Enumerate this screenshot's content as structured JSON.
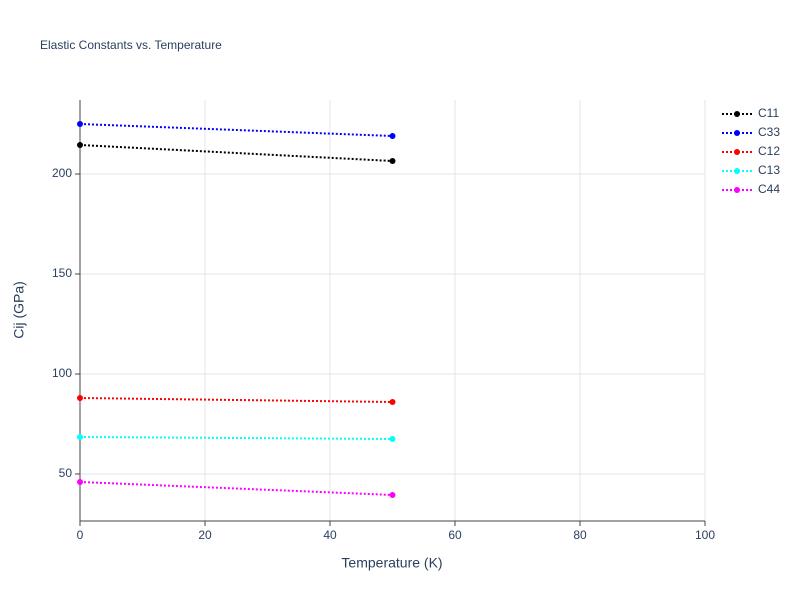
{
  "chart_data": {
    "type": "line",
    "title": "Elastic Constants vs. Temperature",
    "x_label": "Temperature (K)",
    "y_label": "Cij (GPa)",
    "x": [
      0,
      50
    ],
    "series": [
      {
        "name": "C11",
        "color": "#000000",
        "values": [
          214.5,
          206.5
        ]
      },
      {
        "name": "C33",
        "color": "#0000ff",
        "values": [
          225,
          219
        ]
      },
      {
        "name": "C12",
        "color": "#ff0000",
        "values": [
          88,
          86
        ]
      },
      {
        "name": "C13",
        "color": "#00ffff",
        "values": [
          68.5,
          67.5
        ]
      },
      {
        "name": "C44",
        "color": "#ff00ff",
        "values": [
          46,
          39.5
        ]
      }
    ],
    "xlim": [
      0,
      100
    ],
    "xticks": [
      0,
      20,
      40,
      60,
      80,
      100
    ],
    "ylim": [
      26.5,
      237
    ],
    "yticks": [
      50,
      100,
      150,
      200
    ],
    "grid": true,
    "legend": "right"
  }
}
